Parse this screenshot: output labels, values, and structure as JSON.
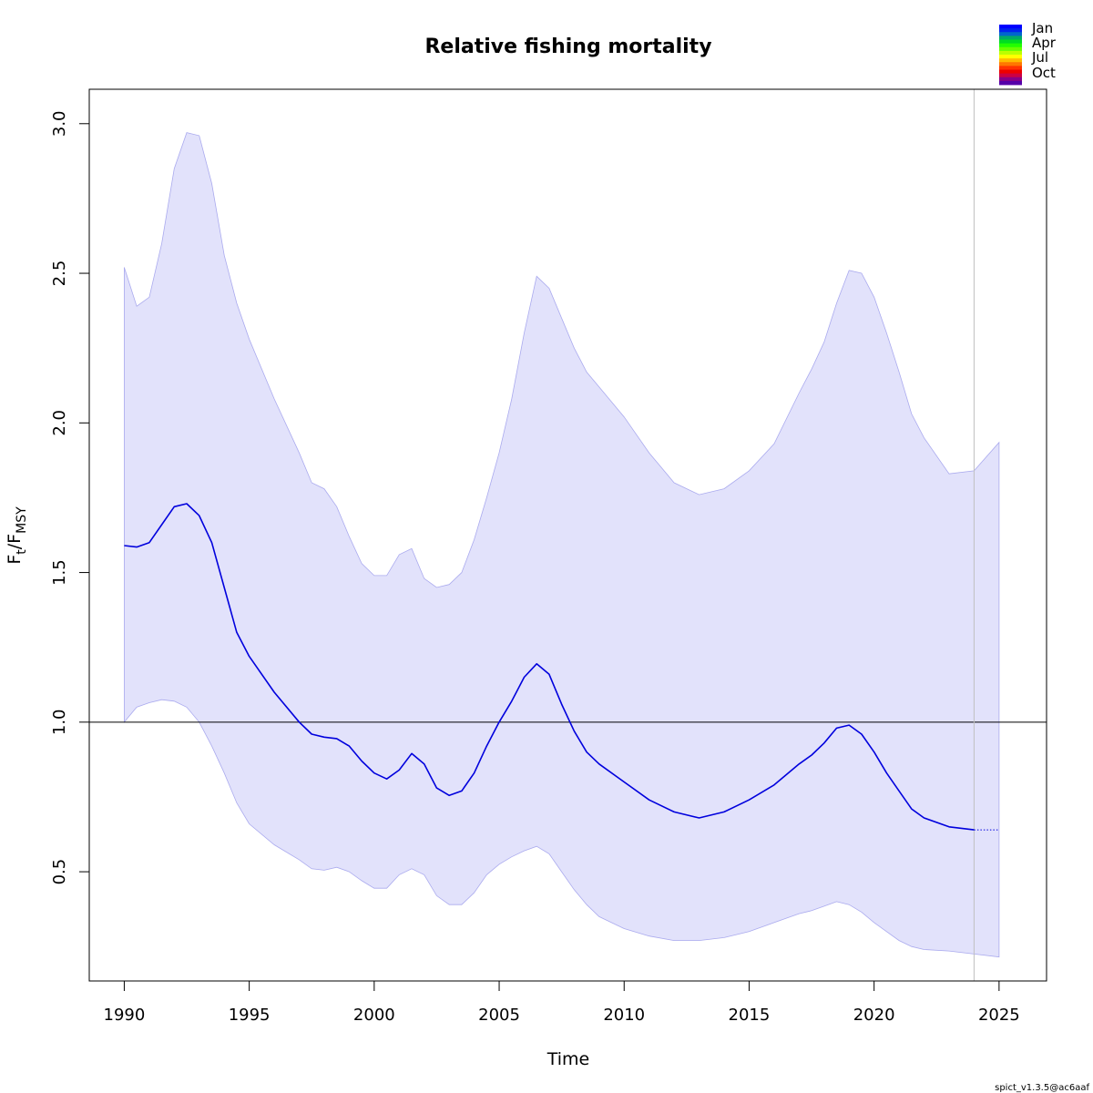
{
  "chart_data": {
    "type": "line",
    "title": "Relative fishing mortality",
    "xlabel": "Time",
    "ylabel": {
      "main": "F",
      "sub1": "t",
      "sep": "/F",
      "sub2": "MSY"
    },
    "xlim": [
      1988.6,
      2026.9
    ],
    "ylim": [
      0.135,
      3.115
    ],
    "xticks": [
      1990,
      1995,
      2000,
      2005,
      2010,
      2015,
      2020,
      2025
    ],
    "yticks": [
      0.5,
      1.0,
      1.5,
      2.0,
      2.5,
      3.0
    ],
    "ytick_labels": [
      "0.5",
      "1.0",
      "1.5",
      "2.0",
      "2.5",
      "3.0"
    ],
    "reference_line": 1.0,
    "last_observation_time": 2024.0,
    "series": [
      {
        "name": "Ft/Fmsy estimate",
        "color": "#0000dd",
        "x": [
          1990.0,
          1990.5,
          1991.0,
          1991.5,
          1992.0,
          1992.5,
          1993.0,
          1993.5,
          1994.0,
          1994.5,
          1995.0,
          1996.0,
          1997.0,
          1997.5,
          1998.0,
          1998.5,
          1999.0,
          1999.5,
          2000.0,
          2000.5,
          2001.0,
          2001.5,
          2002.0,
          2002.5,
          2003.0,
          2003.5,
          2004.0,
          2004.5,
          2005.0,
          2005.5,
          2006.0,
          2006.5,
          2007.0,
          2007.5,
          2008.0,
          2008.5,
          2009.0,
          2010.0,
          2011.0,
          2012.0,
          2013.0,
          2014.0,
          2015.0,
          2016.0,
          2017.0,
          2017.5,
          2018.0,
          2018.5,
          2019.0,
          2019.5,
          2020.0,
          2020.5,
          2021.0,
          2021.5,
          2022.0,
          2023.0,
          2024.0
        ],
        "values": [
          1.59,
          1.585,
          1.6,
          1.66,
          1.72,
          1.73,
          1.69,
          1.6,
          1.45,
          1.3,
          1.22,
          1.1,
          1.0,
          0.96,
          0.95,
          0.945,
          0.92,
          0.87,
          0.83,
          0.81,
          0.84,
          0.895,
          0.86,
          0.78,
          0.755,
          0.77,
          0.83,
          0.92,
          1.0,
          1.07,
          1.15,
          1.195,
          1.16,
          1.06,
          0.97,
          0.9,
          0.86,
          0.8,
          0.74,
          0.7,
          0.68,
          0.7,
          0.74,
          0.79,
          0.86,
          0.89,
          0.93,
          0.98,
          0.99,
          0.96,
          0.9,
          0.83,
          0.77,
          0.71,
          0.68,
          0.65,
          0.64
        ]
      },
      {
        "name": "Forecast",
        "color": "#0000dd",
        "dotted": true,
        "x": [
          2024.0,
          2025.0
        ],
        "values": [
          0.64,
          0.64
        ]
      }
    ],
    "confidence_band": {
      "name": "95% CI",
      "color": "#e2e2fb",
      "x": [
        1990.0,
        1990.5,
        1991.0,
        1991.5,
        1992.0,
        1992.5,
        1993.0,
        1993.5,
        1994.0,
        1994.5,
        1995.0,
        1996.0,
        1997.0,
        1997.5,
        1998.0,
        1998.5,
        1999.0,
        1999.5,
        2000.0,
        2000.5,
        2001.0,
        2001.5,
        2002.0,
        2002.5,
        2003.0,
        2003.5,
        2004.0,
        2004.5,
        2005.0,
        2005.5,
        2006.0,
        2006.5,
        2007.0,
        2007.5,
        2008.0,
        2008.5,
        2009.0,
        2010.0,
        2011.0,
        2012.0,
        2013.0,
        2014.0,
        2015.0,
        2016.0,
        2017.0,
        2017.5,
        2018.0,
        2018.5,
        2019.0,
        2019.5,
        2020.0,
        2020.5,
        2021.0,
        2021.5,
        2022.0,
        2023.0,
        2024.0,
        2025.0
      ],
      "upper": [
        2.52,
        2.39,
        2.42,
        2.6,
        2.85,
        2.97,
        2.96,
        2.8,
        2.56,
        2.4,
        2.28,
        2.08,
        1.9,
        1.8,
        1.78,
        1.72,
        1.62,
        1.53,
        1.49,
        1.49,
        1.56,
        1.58,
        1.48,
        1.45,
        1.46,
        1.5,
        1.61,
        1.75,
        1.9,
        2.08,
        2.3,
        2.49,
        2.45,
        2.35,
        2.25,
        2.17,
        2.12,
        2.02,
        1.9,
        1.8,
        1.76,
        1.78,
        1.84,
        1.93,
        2.1,
        2.18,
        2.27,
        2.4,
        2.51,
        2.5,
        2.42,
        2.3,
        2.17,
        2.03,
        1.95,
        1.83,
        1.84,
        1.935
      ],
      "lower": [
        1.0,
        1.05,
        1.065,
        1.075,
        1.07,
        1.05,
        1.0,
        0.92,
        0.83,
        0.73,
        0.66,
        0.59,
        0.54,
        0.51,
        0.505,
        0.515,
        0.5,
        0.47,
        0.445,
        0.445,
        0.49,
        0.51,
        0.49,
        0.42,
        0.39,
        0.39,
        0.43,
        0.49,
        0.525,
        0.55,
        0.57,
        0.585,
        0.56,
        0.5,
        0.44,
        0.39,
        0.35,
        0.31,
        0.285,
        0.27,
        0.27,
        0.28,
        0.3,
        0.33,
        0.36,
        0.37,
        0.385,
        0.4,
        0.39,
        0.365,
        0.33,
        0.3,
        0.27,
        0.25,
        0.24,
        0.235,
        0.225,
        0.215
      ]
    }
  },
  "legend": {
    "labels": [
      "Jan",
      "Apr",
      "Jul",
      "Oct"
    ],
    "colors": [
      "#0000ff",
      "#0022ee",
      "#0066cc",
      "#00aa66",
      "#00dd22",
      "#22ff00",
      "#66ff00",
      "#bbff00",
      "#ffff00",
      "#ffbb00",
      "#ff7700",
      "#ff3300",
      "#ee0000",
      "#cc0044",
      "#880088",
      "#5500aa"
    ]
  },
  "footer": "spict_v1.3.5@ac6aaf"
}
